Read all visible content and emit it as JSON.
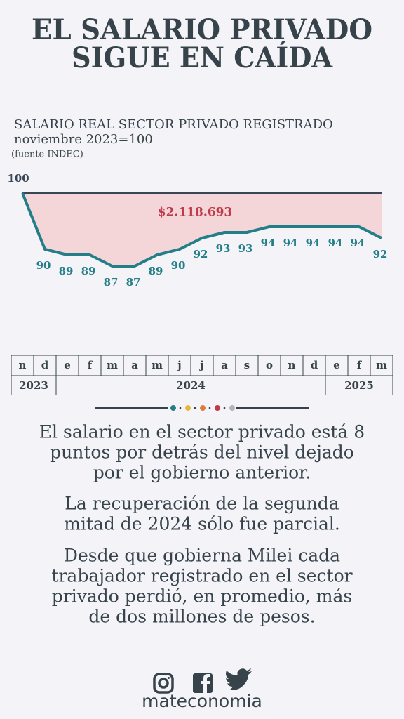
{
  "header": {
    "title_lines": [
      "EL SALARIO PRIVADO",
      "SIGUE EN CAÍDA"
    ]
  },
  "chart_data": {
    "type": "line",
    "title": "SALARIO REAL SECTOR PRIVADO REGISTRADO",
    "subtitle": "noviembre 2023=100",
    "source": "(fuente INDEC)",
    "annotation": "$2.118.693",
    "categories": [
      "n",
      "d",
      "e",
      "f",
      "m",
      "a",
      "m",
      "j",
      "j",
      "a",
      "s",
      "o",
      "n",
      "d",
      "e",
      "f",
      "m"
    ],
    "year_groups": [
      {
        "label": "2023",
        "months": 2
      },
      {
        "label": "2024",
        "months": 12
      },
      {
        "label": "2025",
        "months": 3
      }
    ],
    "values": [
      100,
      90,
      89,
      89,
      87,
      87,
      89,
      90,
      92,
      93,
      93,
      94,
      94,
      94,
      94,
      94,
      92
    ],
    "color": "#237e87",
    "ylim": [
      84,
      102
    ]
  },
  "text": {
    "paragraphs": [
      [
        "El salario en el sector privado está 8",
        "puntos por detrás del nivel dejado",
        "por el gobierno anterior."
      ],
      [
        "La recuperación de la segunda",
        "mitad de 2024 sólo fue parcial."
      ],
      [
        "Desde que gobierna Milei cada",
        "trabajador registrado en el sector",
        "privado perdió, en promedio, más",
        "de dos millones de pesos."
      ]
    ]
  },
  "footer": {
    "brand": "mateconomia"
  }
}
